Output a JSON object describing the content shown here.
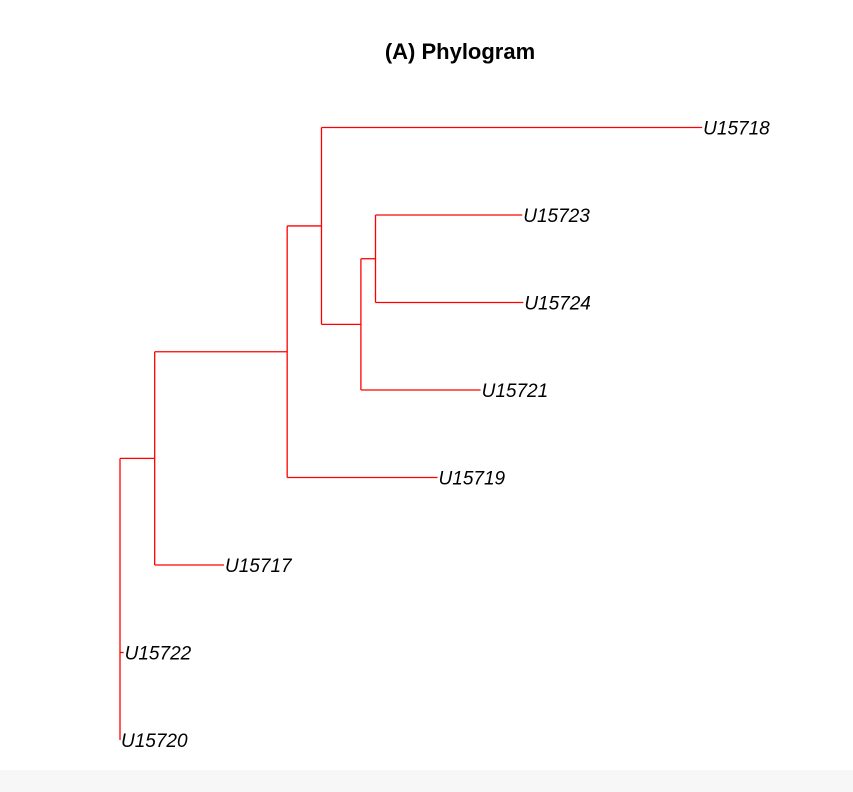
{
  "title": "(A) Phylogram",
  "colors": {
    "branch": "#ff0000",
    "label": "#000000",
    "background": "#ffffff"
  },
  "tree": {
    "type": "phylogram",
    "tips": [
      {
        "id": "U15718",
        "label": "U15718",
        "x": 1.595,
        "order": 1
      },
      {
        "id": "U15723",
        "label": "U15723",
        "x": 1.102,
        "order": 2
      },
      {
        "id": "U15724",
        "label": "U15724",
        "x": 1.105,
        "order": 3
      },
      {
        "id": "U15721",
        "label": "U15721",
        "x": 0.988,
        "order": 4
      },
      {
        "id": "U15719",
        "label": "U15719",
        "x": 0.87,
        "order": 5
      },
      {
        "id": "U15717",
        "label": "U15717",
        "x": 0.285,
        "order": 6
      },
      {
        "id": "U15722",
        "label": "U15722",
        "x": 0.01,
        "order": 7
      },
      {
        "id": "U15720",
        "label": "U15720",
        "x": 0.0,
        "order": 8
      }
    ],
    "internal_nodes": [
      {
        "id": "n_root",
        "x": 0.0,
        "children": [
          "n_a",
          "U15722",
          "U15720"
        ]
      },
      {
        "id": "n_a",
        "x": 0.095,
        "children": [
          "n_b",
          "U15717"
        ]
      },
      {
        "id": "n_b",
        "x": 0.458,
        "children": [
          "n_c",
          "U15719"
        ]
      },
      {
        "id": "n_c",
        "x": 0.552,
        "children": [
          "U15718",
          "n_d"
        ]
      },
      {
        "id": "n_d",
        "x": 0.66,
        "children": [
          "n_e",
          "U15721"
        ]
      },
      {
        "id": "n_e",
        "x": 0.7,
        "children": [
          "U15723",
          "U15724"
        ]
      }
    ]
  }
}
